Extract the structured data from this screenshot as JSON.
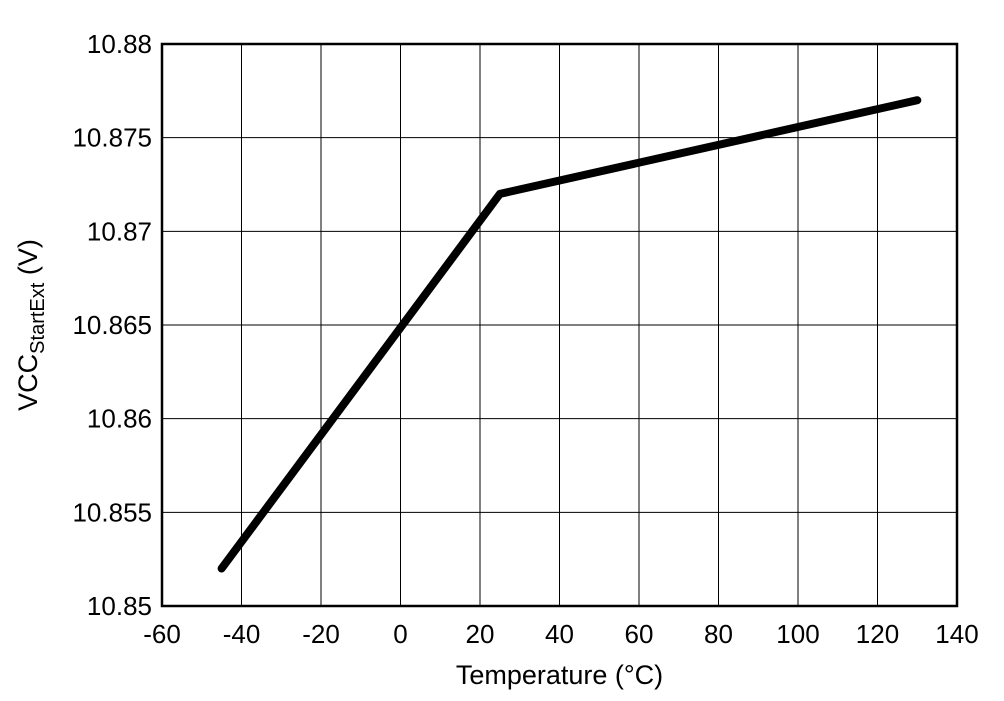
{
  "chart_data": {
    "type": "line",
    "title": "",
    "xlabel": "Temperature (°C)",
    "ylabel": {
      "main": "VCC",
      "subscript": "StartExt",
      "unit": " (V)"
    },
    "xlim": [
      -60,
      140
    ],
    "ylim": [
      10.85,
      10.88
    ],
    "x_ticks": [
      -60,
      -40,
      -20,
      0,
      20,
      40,
      60,
      80,
      100,
      120,
      140
    ],
    "x_tick_labels": [
      "-60",
      "-40",
      "-20",
      "0",
      "20",
      "40",
      "60",
      "80",
      "100",
      "120",
      "140"
    ],
    "y_ticks": [
      10.85,
      10.855,
      10.86,
      10.865,
      10.87,
      10.875,
      10.88
    ],
    "y_tick_labels": [
      "10.85",
      "10.855",
      "10.86",
      "10.865",
      "10.87",
      "10.875",
      "10.88"
    ],
    "grid": true,
    "legend": "none",
    "series": [
      {
        "color": "#000000",
        "x": [
          -45,
          25,
          130
        ],
        "y": [
          10.852,
          10.872,
          10.877
        ]
      }
    ]
  }
}
